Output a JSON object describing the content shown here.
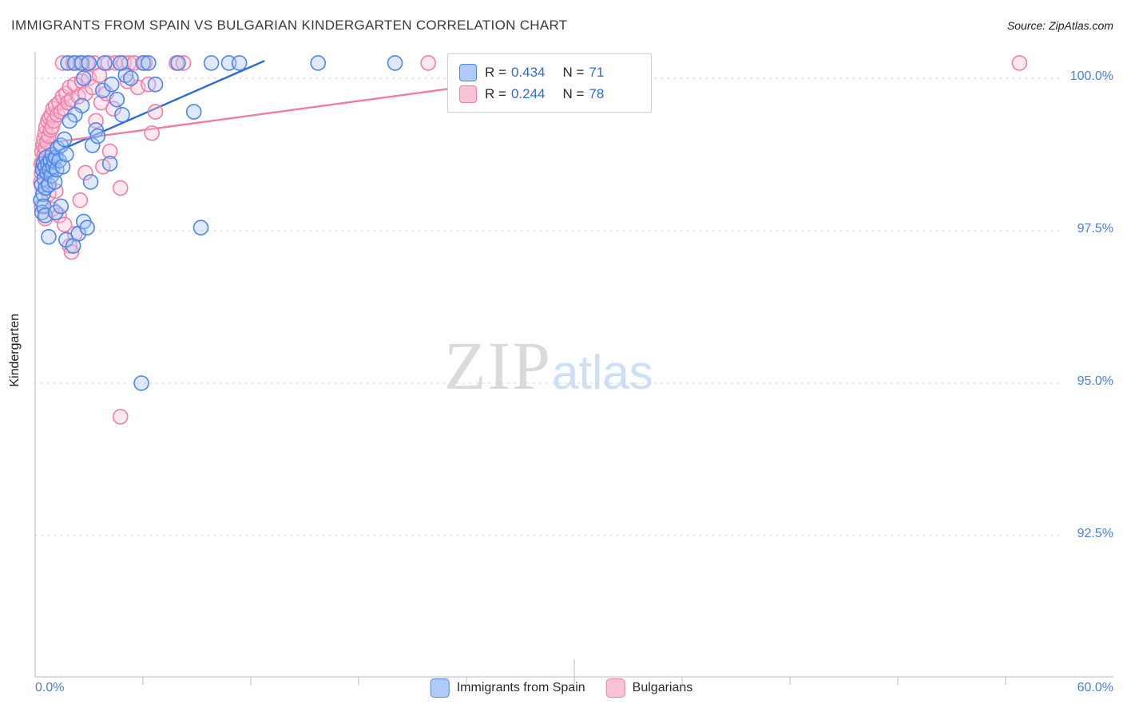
{
  "title": "IMMIGRANTS FROM SPAIN VS BULGARIAN KINDERGARTEN CORRELATION CHART",
  "source": "Source: ZipAtlas.com",
  "watermark": {
    "zip": "ZIP",
    "atlas": "atlas"
  },
  "y_axis": {
    "label": "Kindergarten",
    "ticks": [
      "100.0%",
      "97.5%",
      "95.0%",
      "92.5%"
    ]
  },
  "x_axis": {
    "min_label": "0.0%",
    "max_label": "60.0%"
  },
  "legend_box": {
    "rows": [
      {
        "r_label": "R =",
        "r_value": "0.434",
        "n_label": "N =",
        "n_value": "71"
      },
      {
        "r_label": "R =",
        "r_value": "0.244",
        "n_label": "N =",
        "n_value": "78"
      }
    ]
  },
  "bottom_legend": {
    "items": [
      {
        "label": "Immigrants from Spain"
      },
      {
        "label": "Bulgarians"
      }
    ]
  },
  "colors": {
    "accent_text": "#2e6bd4",
    "axis_label": "#4a7fd6",
    "grid": "#d9d9d9",
    "axis_line": "#c6c6c6",
    "blue_stroke": "#4c86e8",
    "blue_fill": "#a9c8f7",
    "pink_stroke": "#ef7fa8",
    "pink_fill": "#f9c2d6"
  },
  "chart_data": {
    "type": "scatter",
    "title": "IMMIGRANTS FROM SPAIN VS BULGARIAN KINDERGARTEN CORRELATION CHART",
    "xlabel": "Immigrants from Spain (%)",
    "ylabel": "Kindergarten",
    "xlim": [
      0,
      60
    ],
    "ylim": [
      90.5,
      100.4
    ],
    "y_gridlines": [
      100.0,
      97.5,
      95.0,
      92.5
    ],
    "legend_position": "top-center",
    "grid": "dotted-horizontal",
    "series": [
      {
        "name": "Immigrants from Spain",
        "R": 0.434,
        "N": 71,
        "stroke": "#4c86e8",
        "fill": "#a9c8f7",
        "points": [
          [
            0.05,
            98.0
          ],
          [
            0.1,
            98.25
          ],
          [
            0.12,
            97.8
          ],
          [
            0.15,
            98.5
          ],
          [
            0.18,
            98.1
          ],
          [
            0.2,
            98.6
          ],
          [
            0.22,
            97.9
          ],
          [
            0.25,
            98.35
          ],
          [
            0.3,
            98.55
          ],
          [
            0.32,
            98.2
          ],
          [
            0.35,
            98.7
          ],
          [
            0.4,
            98.45
          ],
          [
            0.45,
            98.6
          ],
          [
            0.5,
            98.25
          ],
          [
            0.55,
            98.5
          ],
          [
            0.6,
            98.65
          ],
          [
            0.65,
            98.4
          ],
          [
            0.7,
            98.75
          ],
          [
            0.75,
            98.55
          ],
          [
            0.8,
            98.65
          ],
          [
            0.85,
            98.3
          ],
          [
            0.9,
            98.7
          ],
          [
            0.95,
            98.5
          ],
          [
            1.0,
            98.85
          ],
          [
            1.1,
            98.65
          ],
          [
            1.2,
            98.9
          ],
          [
            1.3,
            98.55
          ],
          [
            1.4,
            99.0
          ],
          [
            1.5,
            98.75
          ],
          [
            0.3,
            97.75
          ],
          [
            0.5,
            97.4
          ],
          [
            0.9,
            97.8
          ],
          [
            1.2,
            97.9
          ],
          [
            1.5,
            97.35
          ],
          [
            1.9,
            97.25
          ],
          [
            2.2,
            97.45
          ],
          [
            2.5,
            97.65
          ],
          [
            2.7,
            97.55
          ],
          [
            2.9,
            98.3
          ],
          [
            3.0,
            98.9
          ],
          [
            3.2,
            99.15
          ],
          [
            3.3,
            99.05
          ],
          [
            2.4,
            99.55
          ],
          [
            2.0,
            99.4
          ],
          [
            1.7,
            99.3
          ],
          [
            2.5,
            100.0
          ],
          [
            3.6,
            99.8
          ],
          [
            4.1,
            99.9
          ],
          [
            4.4,
            99.65
          ],
          [
            4.9,
            100.05
          ],
          [
            5.2,
            100.0
          ],
          [
            4.0,
            98.6
          ],
          [
            4.7,
            99.4
          ],
          [
            6.6,
            99.9
          ],
          [
            9.2,
            97.55
          ],
          [
            5.8,
            95.0
          ],
          [
            8.8,
            99.45
          ],
          [
            1.6,
            100.25
          ],
          [
            2.0,
            100.25
          ],
          [
            2.4,
            100.25
          ],
          [
            2.8,
            100.25
          ],
          [
            3.7,
            100.25
          ],
          [
            4.6,
            100.25
          ],
          [
            5.9,
            100.25
          ],
          [
            6.2,
            100.25
          ],
          [
            7.9,
            100.25
          ],
          [
            9.8,
            100.25
          ],
          [
            10.8,
            100.25
          ],
          [
            11.4,
            100.25
          ],
          [
            15.9,
            100.25
          ],
          [
            20.3,
            100.25
          ]
        ]
      },
      {
        "name": "Bulgarians",
        "R": 0.244,
        "N": 78,
        "stroke": "#ef7fa8",
        "fill": "#f9c2d6",
        "points": [
          [
            0.05,
            98.3
          ],
          [
            0.08,
            98.6
          ],
          [
            0.1,
            98.45
          ],
          [
            0.12,
            98.8
          ],
          [
            0.15,
            98.55
          ],
          [
            0.18,
            98.9
          ],
          [
            0.2,
            98.65
          ],
          [
            0.22,
            99.0
          ],
          [
            0.25,
            98.75
          ],
          [
            0.3,
            99.1
          ],
          [
            0.32,
            98.85
          ],
          [
            0.35,
            99.2
          ],
          [
            0.4,
            98.95
          ],
          [
            0.45,
            99.3
          ],
          [
            0.5,
            99.05
          ],
          [
            0.55,
            99.35
          ],
          [
            0.6,
            99.15
          ],
          [
            0.65,
            99.4
          ],
          [
            0.7,
            99.2
          ],
          [
            0.75,
            99.5
          ],
          [
            0.8,
            99.3
          ],
          [
            0.9,
            99.55
          ],
          [
            1.0,
            99.4
          ],
          [
            1.1,
            99.6
          ],
          [
            1.2,
            99.45
          ],
          [
            1.3,
            99.7
          ],
          [
            1.4,
            99.5
          ],
          [
            1.5,
            99.75
          ],
          [
            1.6,
            99.6
          ],
          [
            1.7,
            99.85
          ],
          [
            1.8,
            99.65
          ],
          [
            2.0,
            99.9
          ],
          [
            2.2,
            99.7
          ],
          [
            2.4,
            99.95
          ],
          [
            2.6,
            99.75
          ],
          [
            2.8,
            100.0
          ],
          [
            3.0,
            99.85
          ],
          [
            0.1,
            97.9
          ],
          [
            0.3,
            97.7
          ],
          [
            0.5,
            98.1
          ],
          [
            0.7,
            97.85
          ],
          [
            0.9,
            98.15
          ],
          [
            1.1,
            97.75
          ],
          [
            1.4,
            97.6
          ],
          [
            1.7,
            97.25
          ],
          [
            2.0,
            97.45
          ],
          [
            1.8,
            97.15
          ],
          [
            2.3,
            98.0
          ],
          [
            2.6,
            98.45
          ],
          [
            3.2,
            99.3
          ],
          [
            3.5,
            99.6
          ],
          [
            3.8,
            99.75
          ],
          [
            4.2,
            99.5
          ],
          [
            4.6,
            98.2
          ],
          [
            4.6,
            94.45
          ],
          [
            6.4,
            99.1
          ],
          [
            3.4,
            100.05
          ],
          [
            1.3,
            100.25
          ],
          [
            1.9,
            100.25
          ],
          [
            2.3,
            100.25
          ],
          [
            2.7,
            100.25
          ],
          [
            3.1,
            100.25
          ],
          [
            3.9,
            100.25
          ],
          [
            4.3,
            100.25
          ],
          [
            4.8,
            100.25
          ],
          [
            5.1,
            100.25
          ],
          [
            5.4,
            100.25
          ],
          [
            6.0,
            100.25
          ],
          [
            7.8,
            100.25
          ],
          [
            8.2,
            100.25
          ],
          [
            22.2,
            100.25
          ],
          [
            56.0,
            100.25
          ],
          [
            5.0,
            99.95
          ],
          [
            5.6,
            99.85
          ],
          [
            6.2,
            99.9
          ],
          [
            4.0,
            98.8
          ],
          [
            3.6,
            98.55
          ],
          [
            6.6,
            99.45
          ]
        ]
      }
    ],
    "trend_lines": [
      {
        "series": "Immigrants from Spain",
        "color": "#2e6bd4",
        "x1": 0.2,
        "y1": 98.7,
        "x2": 12.8,
        "y2": 100.28
      },
      {
        "series": "Bulgarians",
        "color": "#f27ba3",
        "x1": 0.0,
        "y1": 98.92,
        "x2": 33.0,
        "y2": 100.2
      }
    ]
  }
}
